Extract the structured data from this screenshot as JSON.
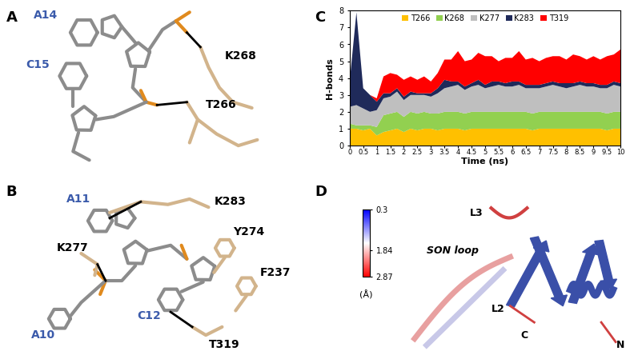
{
  "panel_labels": [
    "A",
    "B",
    "C",
    "D"
  ],
  "panel_A": {
    "nucleotides": [
      "A14",
      "C15"
    ],
    "residues": [
      "K268",
      "T266"
    ]
  },
  "panel_B": {
    "nucleotides": [
      "A11",
      "A10",
      "C12"
    ],
    "residues": [
      "K283",
      "K277",
      "Y274",
      "F237",
      "T319"
    ]
  },
  "chart_data": {
    "type": "area",
    "stacked": true,
    "xlabel": "Time (ns)",
    "ylabel": "H-bonds",
    "x": [
      0,
      0.25,
      0.5,
      0.75,
      1,
      1.25,
      1.5,
      1.75,
      2,
      2.25,
      2.5,
      2.75,
      3,
      3.25,
      3.5,
      3.75,
      4,
      4.25,
      4.5,
      4.75,
      5,
      5.25,
      5.5,
      5.75,
      6,
      6.25,
      6.5,
      6.75,
      7,
      7.25,
      7.5,
      7.75,
      8,
      8.25,
      8.5,
      8.75,
      9,
      9.25,
      9.5,
      9.75,
      10
    ],
    "series": [
      {
        "name": "T266",
        "color": "#ffc000",
        "values": [
          1,
          1,
          0.9,
          1,
          0.6,
          0.8,
          0.9,
          1,
          0.8,
          1,
          0.9,
          1,
          1,
          0.9,
          1,
          1,
          1,
          0.9,
          1,
          1,
          1,
          1,
          1,
          1,
          1,
          1,
          1,
          0.9,
          1,
          1,
          1,
          1,
          1,
          1,
          1,
          1,
          1,
          1,
          0.9,
          1,
          1
        ]
      },
      {
        "name": "K268",
        "color": "#92d050",
        "values": [
          0.3,
          0.2,
          0.3,
          0.2,
          0.5,
          1,
          1,
          1,
          0.9,
          1,
          1,
          1,
          0.9,
          1,
          1,
          1,
          1,
          1,
          1,
          1,
          1,
          1,
          1,
          1,
          1,
          1,
          1,
          1,
          1,
          1,
          1,
          1,
          1,
          1,
          1,
          1,
          1,
          1,
          1,
          1,
          1
        ]
      },
      {
        "name": "K277",
        "color": "#bfbfbf",
        "values": [
          1,
          1.2,
          1,
          0.8,
          1,
          1,
          1,
          1.2,
          1,
          1,
          1.1,
          1,
          1,
          1.2,
          1.4,
          1.5,
          1.6,
          1.4,
          1.5,
          1.6,
          1.4,
          1.5,
          1.6,
          1.5,
          1.5,
          1.6,
          1.4,
          1.5,
          1.4,
          1.5,
          1.6,
          1.5,
          1.4,
          1.5,
          1.6,
          1.5,
          1.5,
          1.4,
          1.5,
          1.6,
          1.5
        ]
      },
      {
        "name": "K283",
        "color": "#1f2a5a",
        "values": [
          1.5,
          5.5,
          1.2,
          1,
          0.5,
          0.3,
          0.2,
          0.2,
          0.2,
          0.2,
          0.1,
          0.1,
          0.2,
          0.3,
          0.5,
          0.3,
          0.2,
          0.2,
          0.2,
          0.3,
          0.2,
          0.3,
          0.2,
          0.2,
          0.3,
          0.2,
          0.2,
          0.2,
          0.2,
          0.2,
          0.2,
          0.2,
          0.3,
          0.2,
          0.2,
          0.2,
          0.2,
          0.2,
          0.2,
          0.2,
          0.2
        ]
      },
      {
        "name": "T319",
        "color": "#ff0000",
        "values": [
          0,
          0,
          0,
          0,
          0.2,
          1,
          1.2,
          0.8,
          1,
          0.9,
          0.8,
          1,
          0.7,
          0.9,
          1.2,
          1.3,
          1.8,
          1.5,
          1.4,
          1.6,
          1.7,
          1.5,
          1.2,
          1.5,
          1.4,
          1.8,
          1.5,
          1.6,
          1.4,
          1.5,
          1.5,
          1.6,
          1.4,
          1.7,
          1.5,
          1.4,
          1.6,
          1.5,
          1.7,
          1.6,
          2
        ]
      }
    ],
    "xlim": [
      0,
      10
    ],
    "xticks": [
      0,
      0.5,
      1,
      1.5,
      2,
      2.5,
      3,
      3.5,
      4,
      4.5,
      5,
      5.5,
      6,
      6.5,
      7,
      7.5,
      8,
      8.5,
      9,
      9.5,
      10
    ],
    "ylim": [
      0,
      8
    ],
    "yticks": [
      0,
      1,
      2,
      3,
      4,
      5,
      6,
      7,
      8
    ],
    "legend": "upper center"
  },
  "panel_D": {
    "labels": [
      "L3",
      "SON loop",
      "L2",
      "C",
      "N"
    ],
    "colorbar": {
      "range": [
        0.3,
        2.87
      ],
      "ticks": [
        0.3,
        1.84,
        2.87
      ],
      "label": "(Å)"
    }
  }
}
